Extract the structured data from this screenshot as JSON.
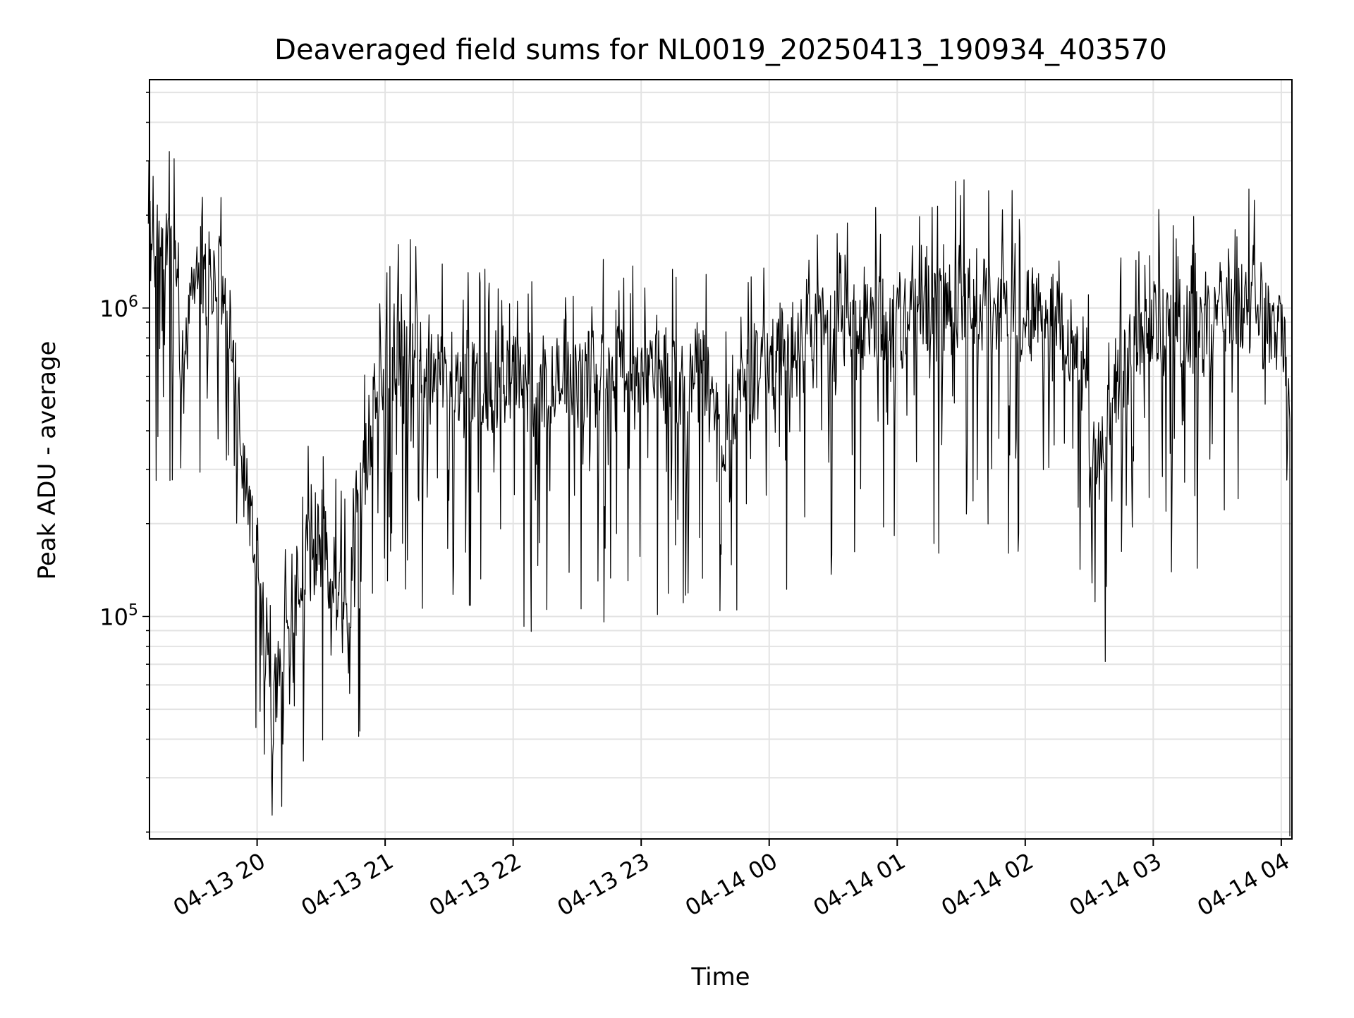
{
  "chart_data": {
    "type": "line",
    "title": "Deaveraged field sums for NL0019_20250413_190934_403570",
    "xlabel": "Time",
    "ylabel": "Peak ADU - average",
    "yscale": "log",
    "xlim": [
      "2025-04-13 19:09:34",
      "2025-04-14 04:05:00"
    ],
    "ylim": [
      19000,
      5500000
    ],
    "grid": true,
    "x_ticks": [
      "2025-04-13 20:00",
      "2025-04-13 21:00",
      "2025-04-13 22:00",
      "2025-04-13 23:00",
      "2025-04-14 00:00",
      "2025-04-14 01:00",
      "2025-04-14 02:00",
      "2025-04-14 03:00",
      "2025-04-14 04:00"
    ],
    "x_tick_labels": [
      "04-13 20",
      "04-13 21",
      "04-13 22",
      "04-13 23",
      "04-14 00",
      "04-14 01",
      "04-14 02",
      "04-14 03",
      "04-14 04"
    ],
    "y_major_ticks": [
      {
        "value": 100000,
        "base": "10",
        "exp": "5"
      },
      {
        "value": 1000000,
        "base": "10",
        "exp": "6"
      }
    ],
    "line_color": "#000000",
    "series": [
      {
        "x": [
          "2025-04-13 19:09",
          "2025-04-13 19:15",
          "2025-04-13 19:20",
          "2025-04-13 19:23",
          "2025-04-13 19:25",
          "2025-04-13 19:28",
          "2025-04-13 19:30",
          "2025-04-13 19:33",
          "2025-04-13 19:36",
          "2025-04-13 19:40",
          "2025-04-13 19:45",
          "2025-04-13 19:48",
          "2025-04-13 19:50",
          "2025-04-13 19:53",
          "2025-04-13 19:55",
          "2025-04-13 19:58",
          "2025-04-13 20:00",
          "2025-04-13 20:02",
          "2025-04-13 20:04",
          "2025-04-13 20:06",
          "2025-04-13 20:08",
          "2025-04-13 20:10",
          "2025-04-13 20:12",
          "2025-04-13 20:15",
          "2025-04-13 20:20",
          "2025-04-13 20:25",
          "2025-04-13 20:30",
          "2025-04-13 20:35",
          "2025-04-13 20:40",
          "2025-04-13 20:43",
          "2025-04-13 20:45",
          "2025-04-13 20:50",
          "2025-04-13 20:55",
          "2025-04-13 21:00",
          "2025-04-13 21:05",
          "2025-04-13 21:10",
          "2025-04-13 21:15",
          "2025-04-13 21:20",
          "2025-04-13 21:30",
          "2025-04-13 21:40",
          "2025-04-13 21:50",
          "2025-04-13 22:00",
          "2025-04-13 22:15",
          "2025-04-13 22:30",
          "2025-04-13 22:45",
          "2025-04-13 23:00",
          "2025-04-13 23:15",
          "2025-04-13 23:30",
          "2025-04-13 23:35",
          "2025-04-13 23:38",
          "2025-04-13 23:45",
          "2025-04-14 00:00",
          "2025-04-14 00:04",
          "2025-04-14 00:15",
          "2025-04-14 00:30",
          "2025-04-14 00:45",
          "2025-04-14 01:00",
          "2025-04-14 01:15",
          "2025-04-14 01:30",
          "2025-04-14 01:35",
          "2025-04-14 01:45",
          "2025-04-14 02:00",
          "2025-04-14 02:15",
          "2025-04-14 02:30",
          "2025-04-14 02:35",
          "2025-04-14 02:45",
          "2025-04-14 03:00",
          "2025-04-14 03:15",
          "2025-04-14 03:30",
          "2025-04-14 03:45",
          "2025-04-14 04:00",
          "2025-04-14 04:04"
        ],
        "y": [
          1700000,
          1500000,
          1600000,
          1100000,
          600000,
          900000,
          1000000,
          1400000,
          1300000,
          1200000,
          1100000,
          900000,
          600000,
          300000,
          250000,
          180000,
          140000,
          100000,
          80000,
          60000,
          50000,
          70000,
          90000,
          110000,
          130000,
          150000,
          170000,
          140000,
          110000,
          90000,
          200000,
          300000,
          450000,
          550000,
          650000,
          700000,
          650000,
          600000,
          620000,
          580000,
          560000,
          540000,
          560000,
          580000,
          600000,
          620000,
          600000,
          580000,
          450000,
          350000,
          550000,
          620000,
          700000,
          750000,
          800000,
          850000,
          900000,
          950000,
          1050000,
          1100000,
          1000000,
          980000,
          900000,
          500000,
          300000,
          600000,
          850000,
          780000,
          900000,
          1000000,
          800000,
          500000
        ]
      }
    ]
  }
}
